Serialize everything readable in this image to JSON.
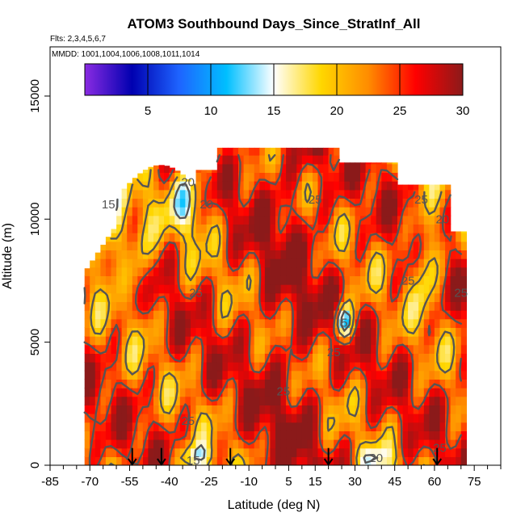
{
  "chart_data": {
    "type": "heatmap",
    "title": "ATOM3 Southbound Days_Since_StratInf_All",
    "subtitle_flights": "Flts: 2,3,4,5,6,7",
    "subtitle_dates": "MMDD: 1001,1004,1006,1008,1011,1014",
    "xlabel": "Latitude (deg N)",
    "ylabel": "Altitude (m)",
    "xlim": [
      -85,
      85
    ],
    "ylim": [
      0,
      17000
    ],
    "x_tick_labels": [
      "-85",
      "-70",
      "-55",
      "-40",
      "-25",
      "-10",
      "5",
      "15",
      "30",
      "45",
      "60",
      "75"
    ],
    "x_tick_values": [
      -85,
      -70,
      -55,
      -40,
      -25,
      -10,
      5,
      15,
      30,
      45,
      60,
      75
    ],
    "x_minor_ticks": [
      -80,
      -75,
      -65,
      -60,
      -50,
      -45,
      -35,
      -30,
      -20,
      -15,
      -5,
      0,
      10,
      20,
      25,
      35,
      40,
      50,
      55,
      65,
      70,
      80,
      85
    ],
    "y_tick_labels": [
      "0",
      "5000",
      "10000",
      "15000"
    ],
    "y_tick_values": [
      0,
      5000,
      10000,
      15000
    ],
    "colorbar": {
      "range": [
        0,
        30
      ],
      "tick_labels": [
        "5",
        "10",
        "15",
        "20",
        "25",
        "30"
      ],
      "tick_values": [
        5,
        10,
        15,
        20,
        25,
        30
      ],
      "stops": [
        "#8a2be2",
        "#0000b0",
        "#1e64ff",
        "#00bfff",
        "#ffffff",
        "#ffd700",
        "#ff8c00",
        "#ff0000",
        "#8b1a1a"
      ]
    },
    "data_extent": {
      "lat_min": -72,
      "lat_max": 72,
      "alt_max_south": 10000,
      "alt_max_tropics": 12900
    },
    "contour_labels": [
      {
        "text": "20",
        "lat": -33,
        "alt": 11500
      },
      {
        "text": "20",
        "lat": -26,
        "alt": 10600
      },
      {
        "text": "15",
        "lat": -63,
        "alt": 10600
      },
      {
        "text": "25",
        "lat": 15,
        "alt": 10800
      },
      {
        "text": "25",
        "lat": 55,
        "alt": 10800
      },
      {
        "text": "20",
        "lat": 63,
        "alt": 10000
      },
      {
        "text": "25",
        "lat": -30,
        "alt": 7000
      },
      {
        "text": "25",
        "lat": 50,
        "alt": 7500
      },
      {
        "text": "25",
        "lat": 70,
        "alt": 7000
      },
      {
        "text": "5",
        "lat": 26,
        "alt": 5800
      },
      {
        "text": "25",
        "lat": 22,
        "alt": 4600
      },
      {
        "text": "25",
        "lat": 3,
        "alt": 3000
      },
      {
        "text": "25",
        "lat": -33,
        "alt": 1800
      },
      {
        "text": "15",
        "lat": -31,
        "alt": 200
      },
      {
        "text": "20",
        "lat": 38,
        "alt": 300
      },
      {
        "text": "25",
        "lat": 62,
        "alt": 700
      }
    ],
    "arrows_at_latitudes": [
      -54,
      -43,
      -17,
      20,
      61
    ]
  }
}
